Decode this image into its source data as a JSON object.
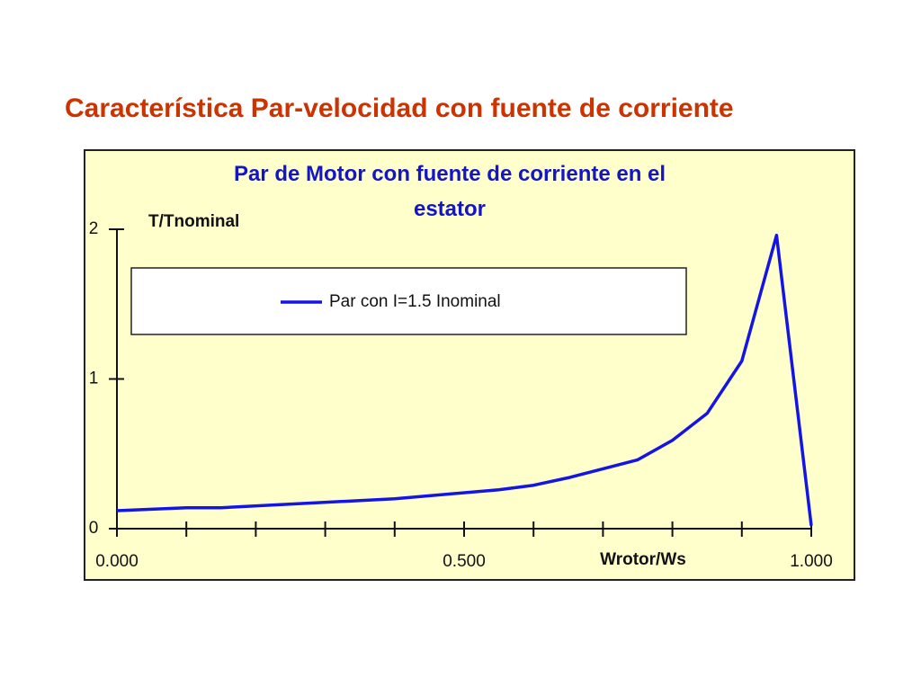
{
  "slide_title": "Característica Par-velocidad con fuente de corriente",
  "chart_data": {
    "type": "line",
    "title": "Par de Motor con fuente de corriente en el estator",
    "y_label": "T/Tnominal",
    "x_label": "Wrotor/Ws",
    "x": [
      0,
      0.1,
      0.15,
      0.4,
      0.55,
      0.6,
      0.65,
      0.7,
      0.75,
      0.8,
      0.85,
      0.9,
      0.95,
      1.0
    ],
    "series": [
      {
        "name": "Par con I=1.5 Inominal",
        "color": "#1414e6",
        "values": [
          0.12,
          0.14,
          0.14,
          0.2,
          0.26,
          0.29,
          0.34,
          0.4,
          0.46,
          0.59,
          0.77,
          1.12,
          1.96,
          0.02
        ]
      }
    ],
    "xlim": [
      0,
      1
    ],
    "ylim": [
      0,
      2
    ],
    "xticks": [
      0,
      0.1,
      0.2,
      0.3,
      0.4,
      0.5,
      0.6,
      0.7,
      0.8,
      0.9,
      1
    ],
    "xtick_labels": [
      {
        "value": 0,
        "label": "0.000"
      },
      {
        "value": 0.5,
        "label": "0.500"
      },
      {
        "value": 1,
        "label": "1.000"
      }
    ],
    "yticks": [
      0,
      1,
      2
    ],
    "background": "#ffffcc"
  }
}
